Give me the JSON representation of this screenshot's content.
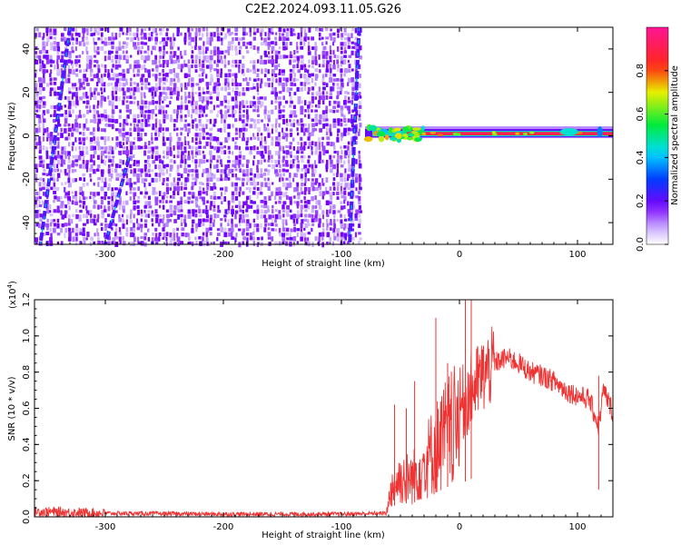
{
  "figure_title": "C2E2.2024.093.11.05.G26",
  "chart_data": [
    {
      "type": "heatmap",
      "xlabel": "Height of straight line (km)",
      "ylabel": "Frequency (Hz)",
      "xlim": [
        -360,
        130
      ],
      "ylim": [
        -50,
        50
      ],
      "xticks": [
        -300,
        -200,
        -100,
        0,
        100
      ],
      "yticks": [
        -40,
        -20,
        0,
        20,
        40
      ],
      "colorbar": {
        "label": "Normalized spectral amplitude",
        "range": [
          0.0,
          1.0
        ],
        "ticks": [
          "0.0",
          "0.2",
          "0.4",
          "0.6",
          "0.8"
        ],
        "colormap": "rainbow (violet-blue-cyan-green-yellow-red-magenta)"
      },
      "features": [
        {
          "name": "noise region",
          "x_range": [
            -360,
            -84
          ],
          "freq_range": [
            -50,
            50
          ],
          "amplitude": "low (0.0-0.2)"
        },
        {
          "name": "signal line",
          "x_range": [
            -80,
            130
          ],
          "frequency": 1,
          "amplitude": "high (~0.9)"
        },
        {
          "name": "diagonal streak",
          "x_from": -330,
          "x_to": -355,
          "freq_from": 50,
          "freq_to": -50
        },
        {
          "name": "diagonal streak",
          "x_from": -280,
          "x_to": -300,
          "freq_from": -10,
          "freq_to": -50
        },
        {
          "name": "diagonal streak",
          "x_from": -85,
          "x_to": -93,
          "freq_from": 50,
          "freq_to": -50
        }
      ]
    },
    {
      "type": "line",
      "xlabel": "Height of straight line (km)",
      "ylabel": "SNR (10 * v/v)",
      "y_multiplier": "(x10",
      "y_multiplier_exp": "4",
      "xlim": [
        -360,
        130
      ],
      "ylim": [
        0.0,
        1.2
      ],
      "xticks": [
        -300,
        -200,
        -100,
        0,
        100
      ],
      "yticks": [
        "0.0",
        "0.2",
        "0.4",
        "0.6",
        "0.8",
        "1.0",
        "1.2"
      ],
      "color": "#ee3333",
      "series": [
        {
          "x": [
            -360,
            -300,
            -200,
            -100,
            -62,
            -58,
            -50,
            -40,
            -30,
            -20,
            -10,
            0,
            10,
            20,
            30,
            40,
            50,
            60,
            70,
            80,
            90,
            100,
            110,
            118,
            122,
            130
          ],
          "values": [
            0.03,
            0.02,
            0.015,
            0.015,
            0.02,
            0.18,
            0.25,
            0.25,
            0.35,
            0.45,
            0.55,
            0.6,
            0.7,
            0.78,
            0.85,
            0.88,
            0.85,
            0.8,
            0.78,
            0.75,
            0.7,
            0.67,
            0.65,
            0.5,
            0.7,
            0.58
          ]
        }
      ],
      "spikes": [
        {
          "x": -55,
          "value": 0.62
        },
        {
          "x": -45,
          "value": 0.6
        },
        {
          "x": -38,
          "value": 0.75
        },
        {
          "x": -20,
          "value": 1.1
        },
        {
          "x": -10,
          "value": 0.85
        },
        {
          "x": 5,
          "value": 1.2
        },
        {
          "x": 10,
          "value": 1.2
        },
        {
          "x": 118,
          "value": 0.78
        }
      ]
    }
  ]
}
